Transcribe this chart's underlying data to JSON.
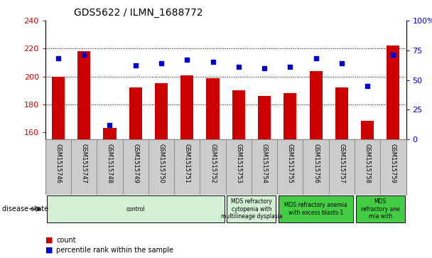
{
  "title": "GDS5622 / ILMN_1688772",
  "samples": [
    "GSM1515746",
    "GSM1515747",
    "GSM1515748",
    "GSM1515749",
    "GSM1515750",
    "GSM1515751",
    "GSM1515752",
    "GSM1515753",
    "GSM1515754",
    "GSM1515755",
    "GSM1515756",
    "GSM1515757",
    "GSM1515758",
    "GSM1515759"
  ],
  "counts": [
    200,
    218,
    163,
    192,
    195,
    201,
    199,
    190,
    186,
    188,
    204,
    192,
    168,
    222
  ],
  "percentile_ranks": [
    68,
    71,
    12,
    62,
    64,
    67,
    65,
    61,
    60,
    61,
    68,
    64,
    45,
    71
  ],
  "bar_color": "#cc0000",
  "dot_color": "#0000cc",
  "ylim_left": [
    155,
    240
  ],
  "ylim_right": [
    0,
    100
  ],
  "yticks_left": [
    160,
    180,
    200,
    220,
    240
  ],
  "yticks_right": [
    0,
    25,
    50,
    75,
    100
  ],
  "grid_vals": [
    180,
    200,
    220
  ],
  "bar_width": 0.5,
  "groups": [
    {
      "label": "control",
      "start": 0,
      "end": 6,
      "color": "#d4f0d4"
    },
    {
      "label": "MDS refractory\ncytopenia with\nmultilineage dysplasia",
      "start": 7,
      "end": 8,
      "color": "#d4f0d4"
    },
    {
      "label": "MDS refractory anemia\nwith excess blasts-1",
      "start": 9,
      "end": 11,
      "color": "#44cc44"
    },
    {
      "label": "MDS\nrefractory ane\nmia with",
      "start": 12,
      "end": 13,
      "color": "#44cc44"
    }
  ],
  "disease_state_label": "disease state",
  "legend_count_label": "count",
  "legend_percentile_label": "percentile rank within the sample",
  "bg_color": "#ffffff",
  "tick_color_left": "#cc0000",
  "tick_color_right": "#0000cc",
  "xlabel_cell_color": "#cccccc",
  "xlabel_cell_border": "#888888"
}
